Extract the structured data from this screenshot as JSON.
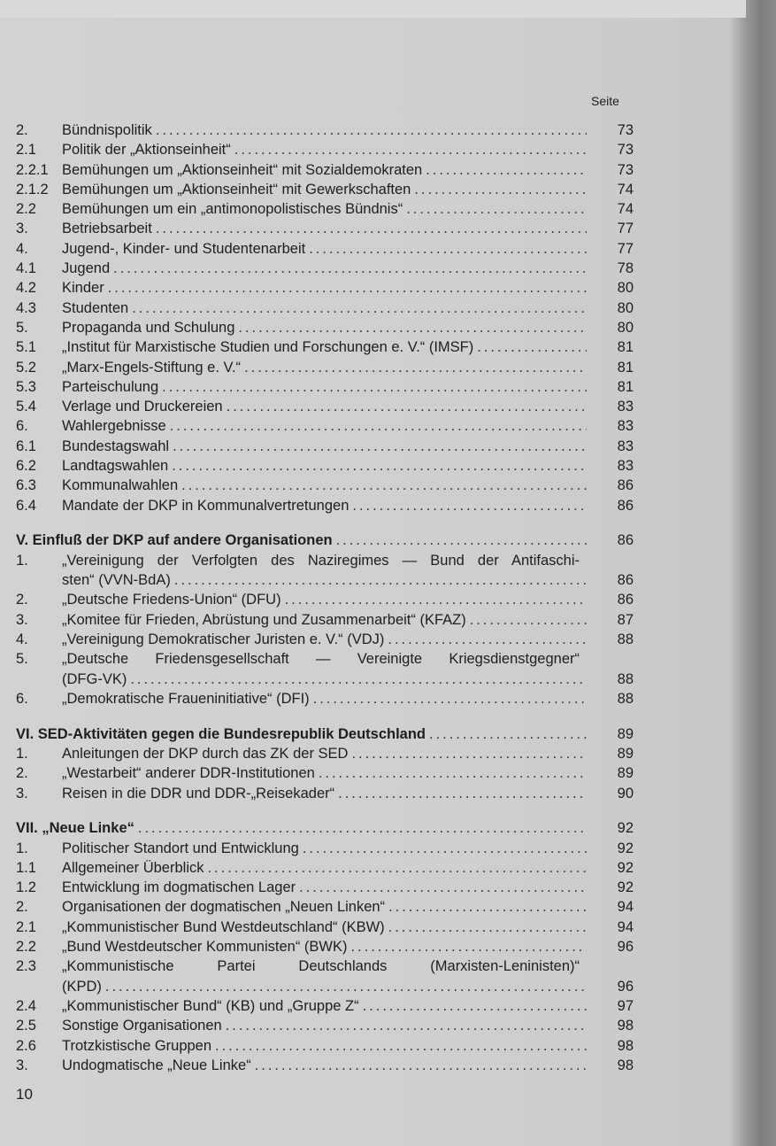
{
  "header": {
    "seite": "Seite"
  },
  "entries": [
    {
      "num": "2.",
      "text": "Bündnispolitik",
      "page": "73"
    },
    {
      "num": "2.1",
      "text": "Politik der „Aktionseinheit“",
      "page": "73"
    },
    {
      "num": "2.2.1",
      "text": "Bemühungen um „Aktionseinheit“ mit Sozialdemokraten",
      "page": "73"
    },
    {
      "num": "2.1.2",
      "text": "Bemühungen um „Aktionseinheit“ mit Gewerkschaften",
      "page": "74"
    },
    {
      "num": "2.2",
      "text": "Bemühungen um ein „antimonopolistisches Bündnis“",
      "page": "74"
    },
    {
      "num": "3.",
      "text": "Betriebsarbeit",
      "page": "77"
    },
    {
      "num": "4.",
      "text": "Jugend-, Kinder- und Studentenarbeit",
      "page": "77"
    },
    {
      "num": "4.1",
      "text": "Jugend",
      "page": "78"
    },
    {
      "num": "4.2",
      "text": "Kinder",
      "page": "80"
    },
    {
      "num": "4.3",
      "text": "Studenten",
      "page": "80"
    },
    {
      "num": "5.",
      "text": "Propaganda und Schulung",
      "page": "80"
    },
    {
      "num": "5.1",
      "text": "„Institut für Marxistische Studien und Forschungen e. V.“ (IMSF)",
      "page": "81"
    },
    {
      "num": "5.2",
      "text": "„Marx-Engels-Stiftung e. V.“",
      "page": "81"
    },
    {
      "num": "5.3",
      "text": "Parteischulung",
      "page": "81"
    },
    {
      "num": "5.4",
      "text": "Verlage und Druckereien",
      "page": "83"
    },
    {
      "num": "6.",
      "text": "Wahlergebnisse",
      "page": "83"
    },
    {
      "num": "6.1",
      "text": "Bundestagswahl",
      "page": "83"
    },
    {
      "num": "6.2",
      "text": "Landtagswahlen",
      "page": "83"
    },
    {
      "num": "6.3",
      "text": "Kommunalwahlen",
      "page": "86"
    },
    {
      "num": "6.4",
      "text": "Mandate der DKP in Kommunalvertretungen",
      "page": "86"
    },
    {
      "section": true,
      "text": "V. Einfluß der DKP auf andere Organisationen",
      "page": "86"
    },
    {
      "num": "1.",
      "text": "„Vereinigung der Verfolgten des Naziregimes — Bund der Antifaschi-",
      "cont": "sten“ (VVN-BdA)",
      "page": "86"
    },
    {
      "num": "2.",
      "text": "„Deutsche Friedens-Union“ (DFU)",
      "page": "86"
    },
    {
      "num": "3.",
      "text": "„Komitee für Frieden, Abrüstung und Zusammenarbeit“ (KFAZ)",
      "page": "87"
    },
    {
      "num": "4.",
      "text": "„Vereinigung Demokratischer Juristen e. V.“ (VDJ)",
      "page": "88"
    },
    {
      "num": "5.",
      "text": "„Deutsche Friedensgesellschaft — Vereinigte Kriegsdienstgegner“",
      "cont": "(DFG-VK)",
      "page": "88"
    },
    {
      "num": "6.",
      "text": "„Demokratische Fraueninitiative“ (DFI)",
      "page": "88"
    },
    {
      "section": true,
      "text": "VI. SED-Aktivitäten gegen die Bundesrepublik Deutschland",
      "page": "89"
    },
    {
      "num": "1.",
      "text": "Anleitungen der DKP durch das ZK der SED",
      "page": "89"
    },
    {
      "num": "2.",
      "text": "„Westarbeit“ anderer DDR-Institutionen",
      "page": "89"
    },
    {
      "num": "3.",
      "text": "Reisen in die DDR und DDR-„Reisekader“",
      "page": "90"
    },
    {
      "section": true,
      "text": "VII. „Neue Linke“",
      "page": "92"
    },
    {
      "num": "1.",
      "text": "Politischer Standort und Entwicklung",
      "page": "92"
    },
    {
      "num": "1.1",
      "text": "Allgemeiner Überblick",
      "page": "92"
    },
    {
      "num": "1.2",
      "text": "Entwicklung im dogmatischen Lager",
      "page": "92"
    },
    {
      "num": "2.",
      "text": "Organisationen der dogmatischen „Neuen Linken“",
      "page": "94"
    },
    {
      "num": "2.1",
      "text": "„Kommunistischer Bund Westdeutschland“ (KBW)",
      "page": "94"
    },
    {
      "num": "2.2",
      "text": "„Bund Westdeutscher Kommunisten“ (BWK)",
      "page": "96"
    },
    {
      "num": "2.3",
      "text": "„Kommunistische Partei Deutschlands (Marxisten-Leninisten)“",
      "cont": "(KPD)",
      "page": "96"
    },
    {
      "num": "2.4",
      "text": "„Kommunistischer Bund“ (KB) und „Gruppe Z“",
      "page": "97"
    },
    {
      "num": "2.5",
      "text": "Sonstige Organisationen",
      "page": "98"
    },
    {
      "num": "2.6",
      "text": "Trotzkistische Gruppen",
      "page": "98"
    },
    {
      "num": "3.",
      "text": "Undogmatische „Neue Linke“",
      "page": "98"
    }
  ],
  "footer": {
    "page_number": "10"
  }
}
